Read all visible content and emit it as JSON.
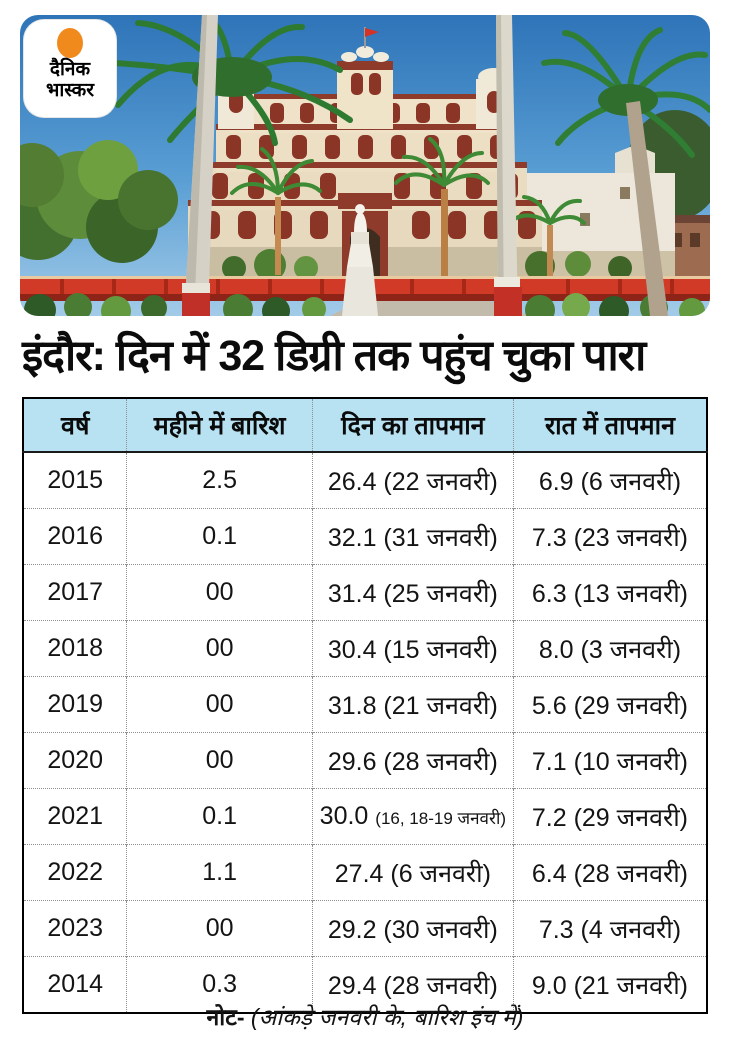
{
  "brand": {
    "logo_line1": "दैनिक",
    "logo_line2": "भास्कर",
    "logo_dot_color": "#f18a1d"
  },
  "headline": "इंदौर: दिन में 32 डिग्री तक पहुंच चुका पारा",
  "photo": {
    "subject": "rajwada-palace-indore",
    "colors": {
      "sky": "#3e82c8",
      "palace_wall": "#ead9bd",
      "palace_accent": "#8e3b2b",
      "fence_red": "#d23a28"
    }
  },
  "table_style": {
    "header_bg": "#b8e2f2",
    "border": "#000000",
    "divider": "#8f8f8f"
  },
  "chart_data": {
    "type": "table",
    "title": "इंदौर: दिन में 32 डिग्री तक पहुंच चुका पारा",
    "columns": [
      "वर्ष",
      "महीने में बारिश",
      "दिन का तापमान",
      "रात में तापमान"
    ],
    "rows": [
      [
        "2015",
        "2.5",
        "26.4 (22 जनवरी)",
        "6.9 (6 जनवरी)"
      ],
      [
        "2016",
        "0.1",
        "32.1 (31 जनवरी)",
        "7.3 (23 जनवरी)"
      ],
      [
        "2017",
        "00",
        "31.4 (25 जनवरी)",
        "6.3 (13 जनवरी)"
      ],
      [
        "2018",
        "00",
        "30.4 (15 जनवरी)",
        "8.0 (3 जनवरी)"
      ],
      [
        "2019",
        "00",
        "31.8 (21 जनवरी)",
        "5.6 (29 जनवरी)"
      ],
      [
        "2020",
        "00",
        "29.6 (28 जनवरी)",
        "7.1 (10 जनवरी)"
      ],
      [
        "2021",
        "0.1",
        "30.0 (16, 18-19 जनवरी)",
        "7.2 (29 जनवरी)"
      ],
      [
        "2022",
        "1.1",
        "27.4 (6 जनवरी)",
        "6.4 (28 जनवरी)"
      ],
      [
        "2023",
        "00",
        "29.2 (30 जनवरी)",
        "7.3 (4 जनवरी)"
      ],
      [
        "2014",
        "0.3",
        "29.4 (28 जनवरी)",
        "9.0 (21 जनवरी)"
      ]
    ],
    "note": "नोट- (आंकड़े जनवरी के, बारिश इंच में)"
  },
  "note": {
    "label": "नोट-",
    "text": "(आंकड़े जनवरी के, बारिश इंच में)"
  }
}
